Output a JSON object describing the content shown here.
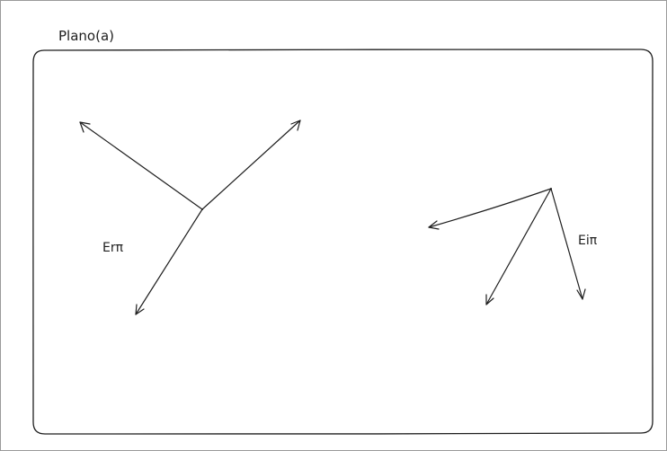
{
  "diagram": {
    "plane": {
      "label": "Plano(a)"
    },
    "groups": [
      {
        "id": "left",
        "label": "Erπ",
        "vector_count": 3
      },
      {
        "id": "right",
        "label": "Eiπ",
        "vector_count": 3
      }
    ],
    "colors": {
      "stroke": "#1e1e1e",
      "background": "#ffffff",
      "border": "#9a9a9a"
    }
  }
}
